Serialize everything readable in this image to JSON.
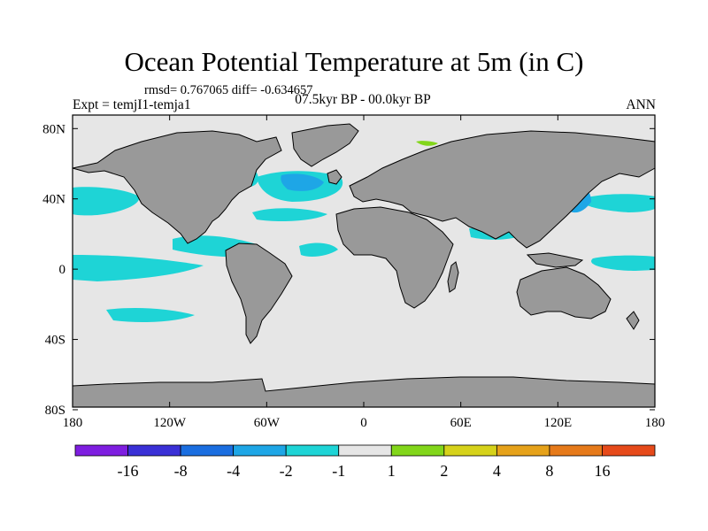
{
  "title": "Ocean Potential Temperature at 5m (in C)",
  "stats": "rmsd= 0.767065 diff= -0.634657",
  "experiment": "Expt = temjI1-temja1",
  "period": "07.5kyr BP - 00.0kyr BP",
  "season": "ANN",
  "lat_ticks": [
    {
      "label": "80N",
      "value": 80
    },
    {
      "label": "40N",
      "value": 40
    },
    {
      "label": "0",
      "value": 0
    },
    {
      "label": "40S",
      "value": -40
    },
    {
      "label": "80S",
      "value": -80
    }
  ],
  "lon_ticks": [
    {
      "label": "180",
      "value": -180
    },
    {
      "label": "120W",
      "value": -120
    },
    {
      "label": "60W",
      "value": -60
    },
    {
      "label": "0",
      "value": 0
    },
    {
      "label": "60E",
      "value": 60
    },
    {
      "label": "120E",
      "value": 120
    },
    {
      "label": "180",
      "value": 180
    }
  ],
  "colorbar": {
    "colors": [
      "#7e1ee0",
      "#3a30d6",
      "#1a6ee0",
      "#1ea6e6",
      "#1ed4d6",
      "#e6e6e6",
      "#82d61a",
      "#d6d21a",
      "#e6a21a",
      "#e67a1a",
      "#e64a1a"
    ],
    "labels": [
      "-16",
      "-8",
      "-4",
      "-2",
      "-1",
      "1",
      "2",
      "4",
      "8",
      "16"
    ]
  },
  "colors": {
    "ocean_neutral": "#e6e6e6",
    "land": "#999999",
    "cool_light": "#1ed4d6",
    "cool_medium": "#1ea6e6",
    "warm_light": "#82d61a"
  }
}
